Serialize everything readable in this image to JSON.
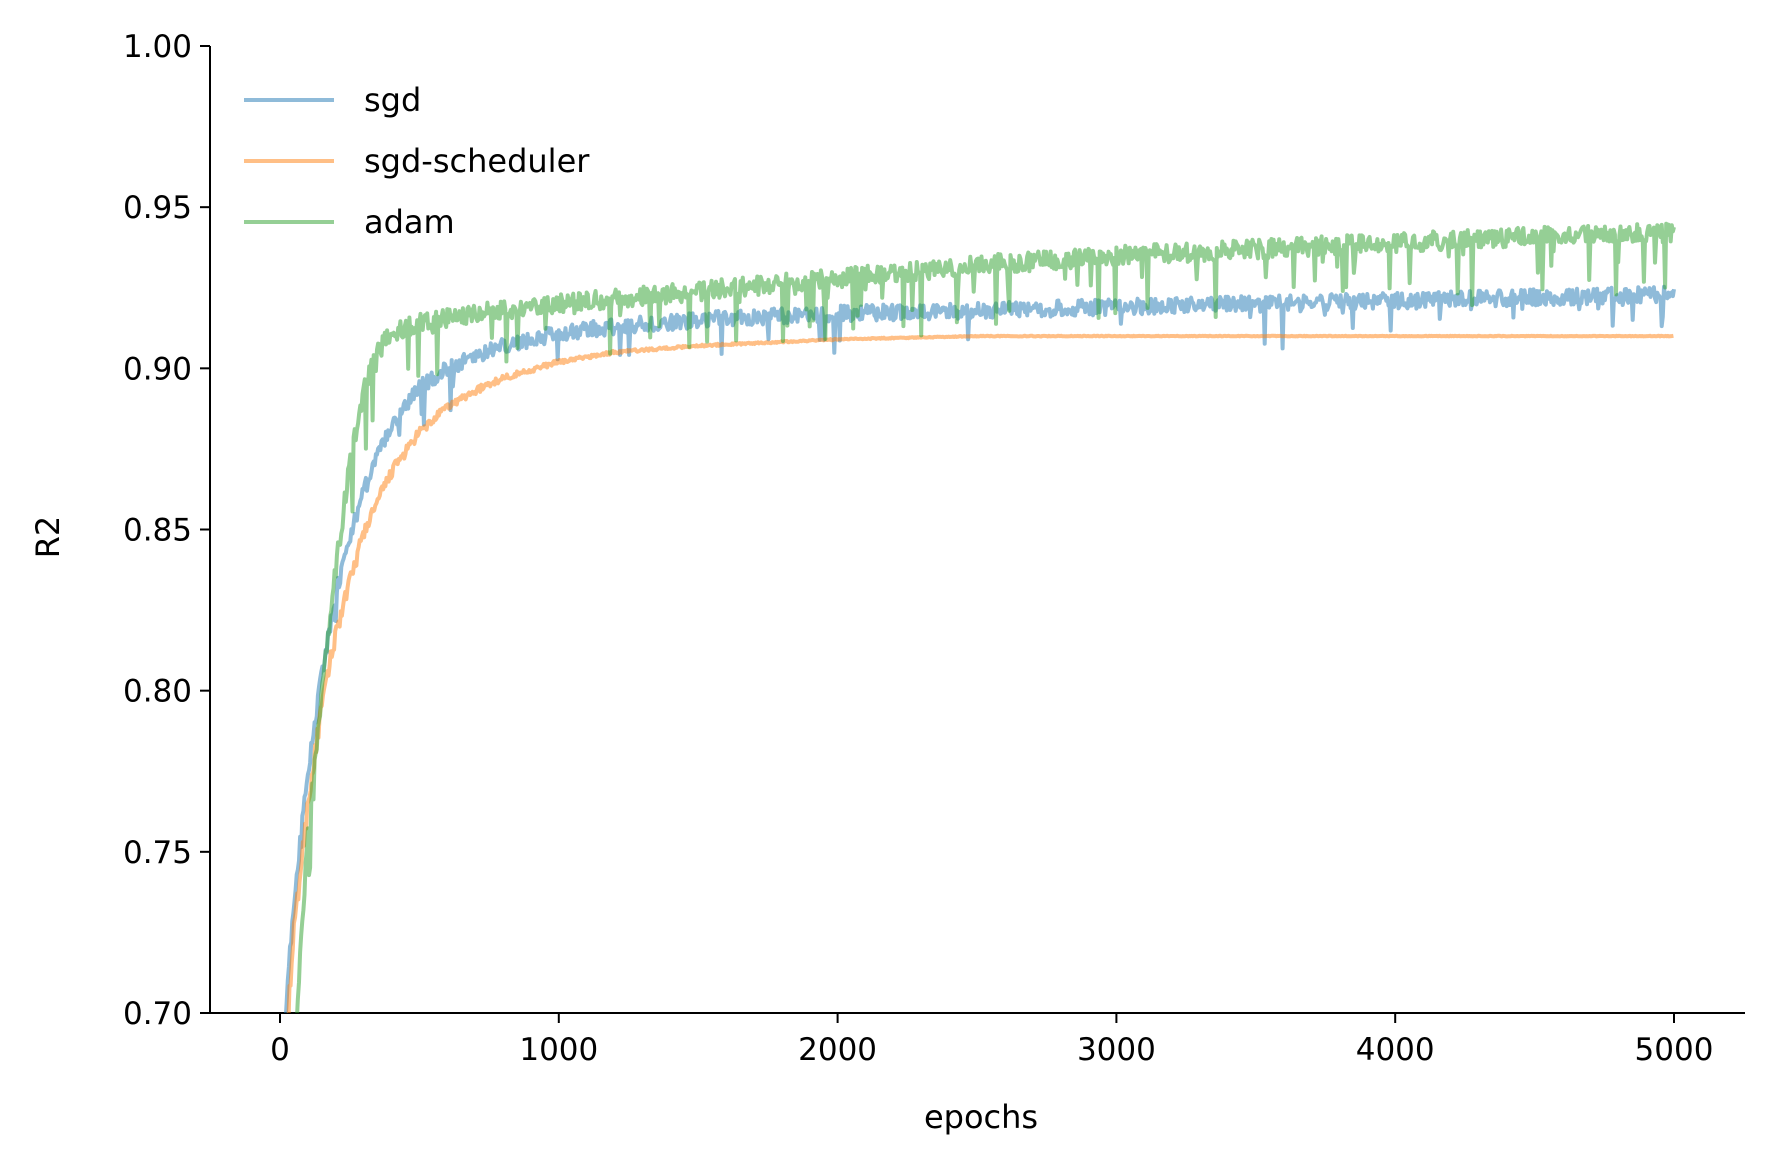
{
  "chart_data": {
    "type": "line",
    "xlabel": "epochs",
    "ylabel": "R2",
    "xlim": [
      -250,
      5250
    ],
    "ylim": [
      0.7,
      1.0
    ],
    "xticks": [
      0,
      1000,
      2000,
      3000,
      4000,
      5000
    ],
    "yticks": [
      0.7,
      0.75,
      0.8,
      0.85,
      0.9,
      0.95,
      1.0
    ],
    "xtick_labels": [
      "0",
      "1000",
      "2000",
      "3000",
      "4000",
      "5000"
    ],
    "ytick_labels": [
      "0.70",
      "0.75",
      "0.80",
      "0.85",
      "0.90",
      "0.95",
      "1.00"
    ],
    "grid": false,
    "legend_position": "top-left",
    "series": [
      {
        "name": "sgd",
        "color": "#1f77b4",
        "x": [
          20,
          50,
          100,
          150,
          200,
          300,
          400,
          500,
          600,
          700,
          800,
          1000,
          1200,
          1500,
          2000,
          2500,
          3000,
          3500,
          4000,
          4500,
          5000
        ],
        "values": [
          0.7,
          0.735,
          0.775,
          0.805,
          0.83,
          0.863,
          0.882,
          0.894,
          0.9,
          0.904,
          0.907,
          0.911,
          0.913,
          0.915,
          0.917,
          0.918,
          0.919,
          0.92,
          0.921,
          0.922,
          0.923
        ]
      },
      {
        "name": "sgd-scheduler",
        "color": "#ff7f0e",
        "x": [
          30,
          50,
          100,
          150,
          200,
          300,
          400,
          500,
          600,
          700,
          800,
          1000,
          1200,
          1500,
          2000,
          2500,
          3000,
          3500,
          4000,
          4500,
          5000
        ],
        "values": [
          0.7,
          0.725,
          0.765,
          0.795,
          0.818,
          0.849,
          0.868,
          0.88,
          0.888,
          0.893,
          0.897,
          0.902,
          0.905,
          0.907,
          0.909,
          0.91,
          0.91,
          0.91,
          0.91,
          0.91,
          0.91
        ]
      },
      {
        "name": "adam",
        "color": "#2ca02c",
        "x": [
          60,
          100,
          150,
          200,
          250,
          300,
          350,
          400,
          500,
          700,
          1000,
          1500,
          2000,
          2500,
          3000,
          3500,
          4000,
          4500,
          5000
        ],
        "values": [
          0.7,
          0.755,
          0.8,
          0.838,
          0.87,
          0.893,
          0.905,
          0.911,
          0.914,
          0.917,
          0.92,
          0.924,
          0.928,
          0.932,
          0.935,
          0.937,
          0.939,
          0.941,
          0.942
        ]
      }
    ]
  }
}
